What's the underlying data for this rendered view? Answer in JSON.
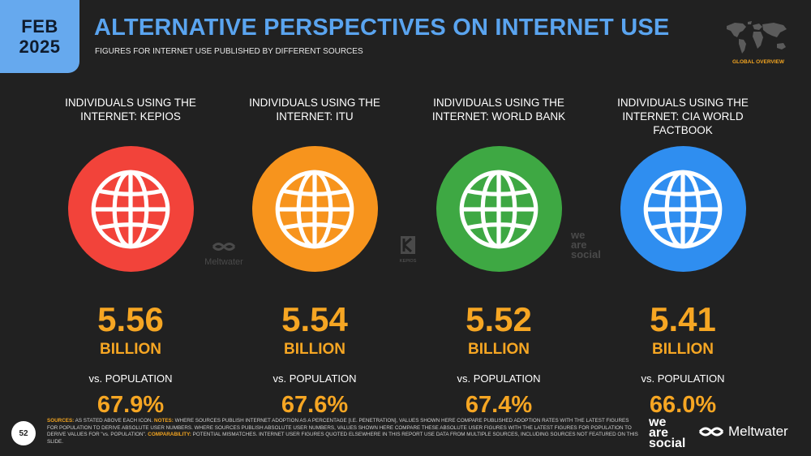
{
  "header": {
    "date_line1": "FEB",
    "date_line2": "2025",
    "title": "ALTERNATIVE PERSPECTIVES ON INTERNET USE",
    "subtitle": "FIGURES FOR INTERNET USE PUBLISHED BY DIFFERENT SOURCES",
    "section_label": "GLOBAL OVERVIEW"
  },
  "columns": [
    {
      "title_line1": "INDIVIDUALS USING THE",
      "title_line2": "INTERNET: KEPIOS",
      "value": "5.56",
      "unit": "BILLION",
      "vs_label": "vs. POPULATION",
      "pct": "67.9%",
      "color": "#f2433a",
      "icon": "globe-icon"
    },
    {
      "title_line1": "INDIVIDUALS USING THE",
      "title_line2": "INTERNET: ITU",
      "value": "5.54",
      "unit": "BILLION",
      "vs_label": "vs. POPULATION",
      "pct": "67.6%",
      "color": "#f7941d",
      "icon": "globe-icon"
    },
    {
      "title_line1": "INDIVIDUALS USING THE",
      "title_line2": "INTERNET: WORLD BANK",
      "value": "5.52",
      "unit": "BILLION",
      "vs_label": "vs. POPULATION",
      "pct": "67.4%",
      "color": "#3ea843",
      "icon": "globe-icon"
    },
    {
      "title_line1": "INDIVIDUALS USING THE",
      "title_line2": "INTERNET: CIA WORLD FACTBOOK",
      "value": "5.41",
      "unit": "BILLION",
      "vs_label": "vs. POPULATION",
      "pct": "66.0%",
      "color": "#2f8ef0",
      "icon": "globe-icon"
    }
  ],
  "watermarks": {
    "meltwater": "Meltwater",
    "kepios": "KEPIOS",
    "wearesocial_1": "we",
    "wearesocial_2": "are",
    "wearesocial_3": "social"
  },
  "footer": {
    "page_number": "52",
    "sources_label": "SOURCES:",
    "sources_text": " AS STATED ABOVE EACH ICON. ",
    "notes_label": "NOTES:",
    "notes_text": " WHERE SOURCES PUBLISH INTERNET ADOPTION AS A PERCENTAGE [I.E. PENETRATION], VALUES SHOWN HERE COMPARE PUBLISHED ADOPTION RATES WITH THE LATEST FIGURES FOR POPULATION TO DERIVE ABSOLUTE USER NUMBERS. WHERE SOURCES PUBLISH ABSOLUTE USER NUMBERS, VALUES SHOWN HERE COMPARE THESE ABSOLUTE USER FIGURES WITH THE LATEST FIGURES FOR POPULATION TO DERIVE VALUES FOR \"vs. POPULATION\". ",
    "comparability_label": "COMPARABILITY:",
    "comparability_text": " POTENTIAL MISMATCHES. INTERNET USER FIGURES QUOTED ELSEWHERE IN THIS REPORT USE DATA FROM MULTIPLE SOURCES, INCLUDING SOURCES NOT FEATURED ON THIS SLIDE.",
    "logo_we": "we",
    "logo_are": "are",
    "logo_social": "social",
    "logo_meltwater": "Meltwater"
  },
  "colors": {
    "accent_blue": "#5aa4ef",
    "accent_orange": "#f6a623",
    "background": "#212121"
  }
}
